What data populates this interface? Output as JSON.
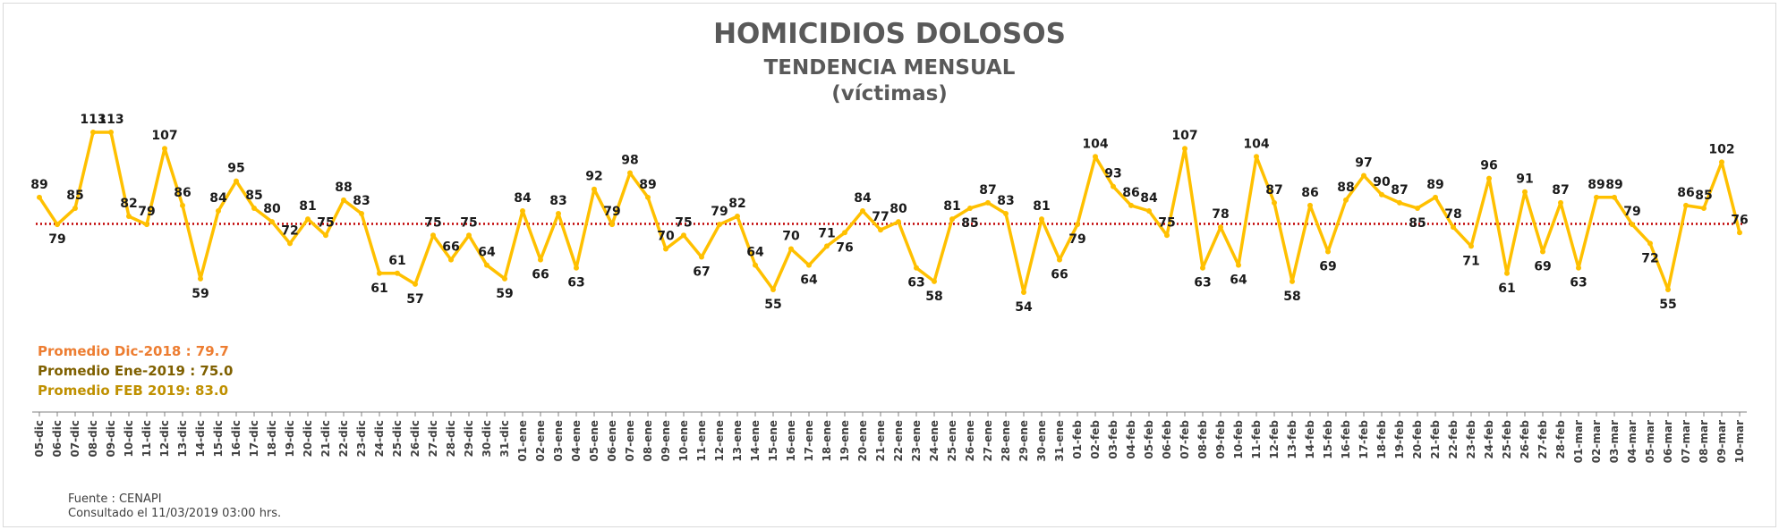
{
  "title": "HOMICIDIOS DOLOSOS",
  "subtitle": "TENDENCIA MENSUAL",
  "unit_label": "(víctimas)",
  "averages": [
    {
      "text": "Promedio Dic-2018  : 79.7",
      "color": "#ed7d31"
    },
    {
      "text": "Promedio Ene-2019 : 75.0",
      "color": "#7f6000"
    },
    {
      "text": "Promedio FEB 2019:  83.0",
      "color": "#bf9000"
    }
  ],
  "source": {
    "line1": "Fuente : CENAPI",
    "line2": "Consultado el 11/03/2019  03:00 hrs."
  },
  "chart_data": {
    "type": "line",
    "title": "HOMICIDIOS DOLOSOS",
    "subtitle": "TENDENCIA MENSUAL",
    "ylabel": "",
    "xlabel": "",
    "grid": false,
    "line_color": "#ffc000",
    "reference_line": {
      "value": 79.2,
      "color": "#c00000",
      "style": "dotted"
    },
    "categories": [
      "05-dic",
      "06-dic",
      "07-dic",
      "08-dic",
      "09-dic",
      "10-dic",
      "11-dic",
      "12-dic",
      "13-dic",
      "14-dic",
      "15-dic",
      "16-dic",
      "17-dic",
      "18-dic",
      "19-dic",
      "20-dic",
      "21-dic",
      "22-dic",
      "23-dic",
      "24-dic",
      "25-dic",
      "26-dic",
      "27-dic",
      "28-dic",
      "29-dic",
      "30-dic",
      "31-dic",
      "01-ene",
      "02-ene",
      "03-ene",
      "04-ene",
      "05-ene",
      "06-ene",
      "07-ene",
      "08-ene",
      "09-ene",
      "10-ene",
      "11-ene",
      "12-ene",
      "13-ene",
      "14-ene",
      "15-ene",
      "16-ene",
      "17-ene",
      "18-ene",
      "19-ene",
      "20-ene",
      "21-ene",
      "22-ene",
      "23-ene",
      "24-ene",
      "25-ene",
      "26-ene",
      "27-ene",
      "28-ene",
      "29-ene",
      "30-ene",
      "31-ene",
      "01-feb",
      "02-feb",
      "03-feb",
      "04-feb",
      "05-feb",
      "06-feb",
      "07-feb",
      "08-feb",
      "09-feb",
      "10-feb",
      "11-feb",
      "12-feb",
      "13-feb",
      "14-feb",
      "15-feb",
      "16-feb",
      "17-feb",
      "18-feb",
      "19-feb",
      "20-feb",
      "21-feb",
      "22-feb",
      "23-feb",
      "24-feb",
      "25-feb",
      "26-feb",
      "27-feb",
      "28-feb",
      "01-mar",
      "02-mar",
      "03-mar",
      "04-mar",
      "05-mar",
      "06-mar",
      "07-mar",
      "08-mar",
      "09-mar",
      "10-mar"
    ],
    "values": [
      89,
      79,
      85,
      113,
      113,
      82,
      79,
      107,
      86,
      59,
      84,
      95,
      85,
      80,
      72,
      81,
      75,
      88,
      83,
      61,
      61,
      57,
      75,
      66,
      75,
      64,
      59,
      84,
      66,
      83,
      63,
      92,
      79,
      98,
      89,
      70,
      75,
      67,
      79,
      82,
      64,
      55,
      70,
      64,
      71,
      76,
      84,
      77,
      80,
      63,
      58,
      81,
      85,
      87,
      83,
      54,
      81,
      66,
      79,
      104,
      93,
      86,
      84,
      75,
      107,
      63,
      78,
      64,
      104,
      87,
      58,
      86,
      69,
      88,
      97,
      90,
      87,
      85,
      89,
      78,
      71,
      96,
      61,
      91,
      69,
      87,
      63,
      89,
      89,
      79,
      72,
      55,
      86,
      85,
      102,
      76
    ],
    "label_positions": [
      "above",
      "below",
      "above",
      "above",
      "above",
      "above",
      "above",
      "above",
      "above",
      "below",
      "above",
      "above",
      "above",
      "above",
      "above",
      "above",
      "above",
      "above",
      "above",
      "below",
      "above",
      "below",
      "above",
      "above",
      "above",
      "above",
      "below",
      "above",
      "below",
      "above",
      "below",
      "above",
      "above",
      "above",
      "above",
      "above",
      "above",
      "below",
      "above",
      "above",
      "above",
      "below",
      "above",
      "below",
      "above",
      "below",
      "above",
      "above",
      "above",
      "below",
      "below",
      "above",
      "below",
      "above",
      "above",
      "below",
      "above",
      "below",
      "below",
      "above",
      "above",
      "above",
      "above",
      "above",
      "above",
      "below",
      "above",
      "below",
      "above",
      "above",
      "below",
      "above",
      "below",
      "above",
      "above",
      "above",
      "above",
      "below",
      "above",
      "above",
      "below",
      "above",
      "below",
      "above",
      "below",
      "above",
      "below",
      "above",
      "above",
      "above",
      "below",
      "below",
      "above",
      "above",
      "above",
      "above"
    ]
  }
}
